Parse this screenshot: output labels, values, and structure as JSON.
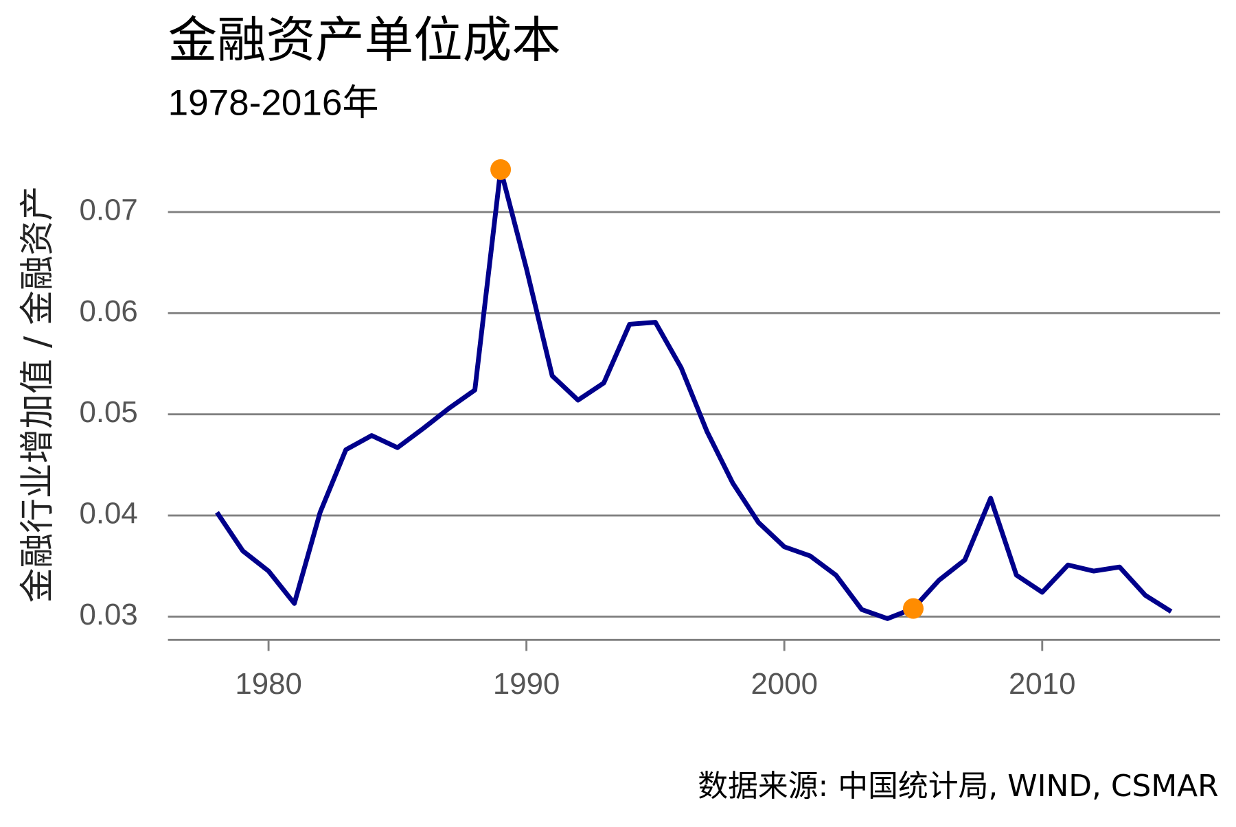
{
  "chart_data": {
    "type": "line",
    "title": "金融资产单位成本",
    "subtitle": "1978-2016年",
    "y_label": "金融行业增加值 / 金融资产",
    "caption": "数据来源: 中国统计局, WIND, CSMAR",
    "x": [
      1978,
      1979,
      1980,
      1981,
      1982,
      1983,
      1984,
      1985,
      1986,
      1987,
      1988,
      1989,
      1990,
      1991,
      1992,
      1993,
      1994,
      1995,
      1996,
      1997,
      1998,
      1999,
      2000,
      2001,
      2002,
      2003,
      2004,
      2005,
      2006,
      2007,
      2008,
      2009,
      2010,
      2011,
      2012,
      2013,
      2014,
      2015
    ],
    "series": [
      {
        "color": "#00008b",
        "values": [
          0.0403,
          0.0365,
          0.0345,
          0.0313,
          0.0403,
          0.0465,
          0.0479,
          0.0467,
          0.0486,
          0.0506,
          0.0524,
          0.0742,
          0.0644,
          0.0538,
          0.0514,
          0.0531,
          0.0589,
          0.0591,
          0.0546,
          0.0483,
          0.0432,
          0.0393,
          0.0369,
          0.036,
          0.0341,
          0.0307,
          0.0298,
          0.0308,
          0.0336,
          0.0356,
          0.0417,
          0.0341,
          0.0324,
          0.0351,
          0.0345,
          0.0349,
          0.0321,
          0.0305
        ]
      }
    ],
    "highlight_indices": [
      11,
      27
    ],
    "highlight_color": "#ff8c00",
    "xlim": [
      1976.1,
      2016.9
    ],
    "xticks": [
      1980,
      1990,
      2000,
      2010
    ],
    "ylim": [
      0.0277,
      0.0753
    ],
    "yticks": [
      {
        "value": 0.03,
        "label": "0.03"
      },
      {
        "value": 0.04,
        "label": "0.04"
      },
      {
        "value": 0.05,
        "label": "0.05"
      },
      {
        "value": 0.06,
        "label": "0.06"
      },
      {
        "value": 0.07,
        "label": "0.07"
      }
    ],
    "grid": true
  }
}
